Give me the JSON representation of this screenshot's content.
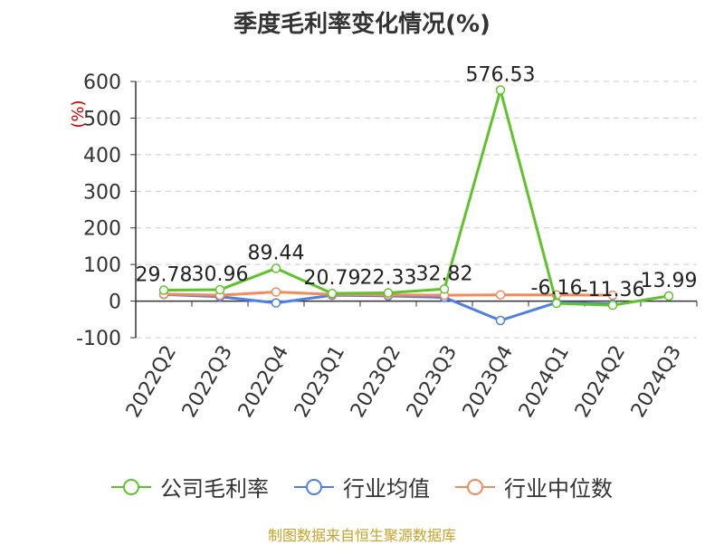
{
  "chart_data": {
    "type": "line",
    "title": "季度毛利率变化情况(%)",
    "ylabel": "(%)",
    "ylim": [
      -100,
      600
    ],
    "yticks": [
      600,
      500,
      400,
      300,
      200,
      100,
      0,
      -100
    ],
    "grid": true,
    "legend_position": "bottom",
    "categories": [
      "2022Q2",
      "2022Q3",
      "2022Q4",
      "2023Q1",
      "2023Q2",
      "2023Q3",
      "2023Q4",
      "2024Q1",
      "2024Q2",
      "2024Q3"
    ],
    "series": [
      {
        "name": "公司毛利率",
        "color": "#5ec32a",
        "values": [
          29.78,
          30.96,
          89.44,
          20.79,
          22.33,
          32.82,
          576.53,
          -6.16,
          -11.36,
          13.99
        ],
        "labels": [
          "29.78",
          "30.96",
          "89.44",
          "20.79",
          "22.33",
          "32.82",
          "576.53",
          "-6.16",
          "-11.36",
          "13.99"
        ]
      },
      {
        "name": "行业均值",
        "color": "#4f7fe6",
        "values": [
          18,
          12,
          -5,
          16,
          14,
          10,
          -53,
          -4,
          -8,
          null
        ]
      },
      {
        "name": "行业中位数",
        "color": "#f28b5a",
        "values": [
          19,
          16,
          25,
          18,
          17,
          16,
          17,
          17,
          16,
          null
        ]
      }
    ]
  },
  "source": "制图数据来自恒生聚源数据库"
}
